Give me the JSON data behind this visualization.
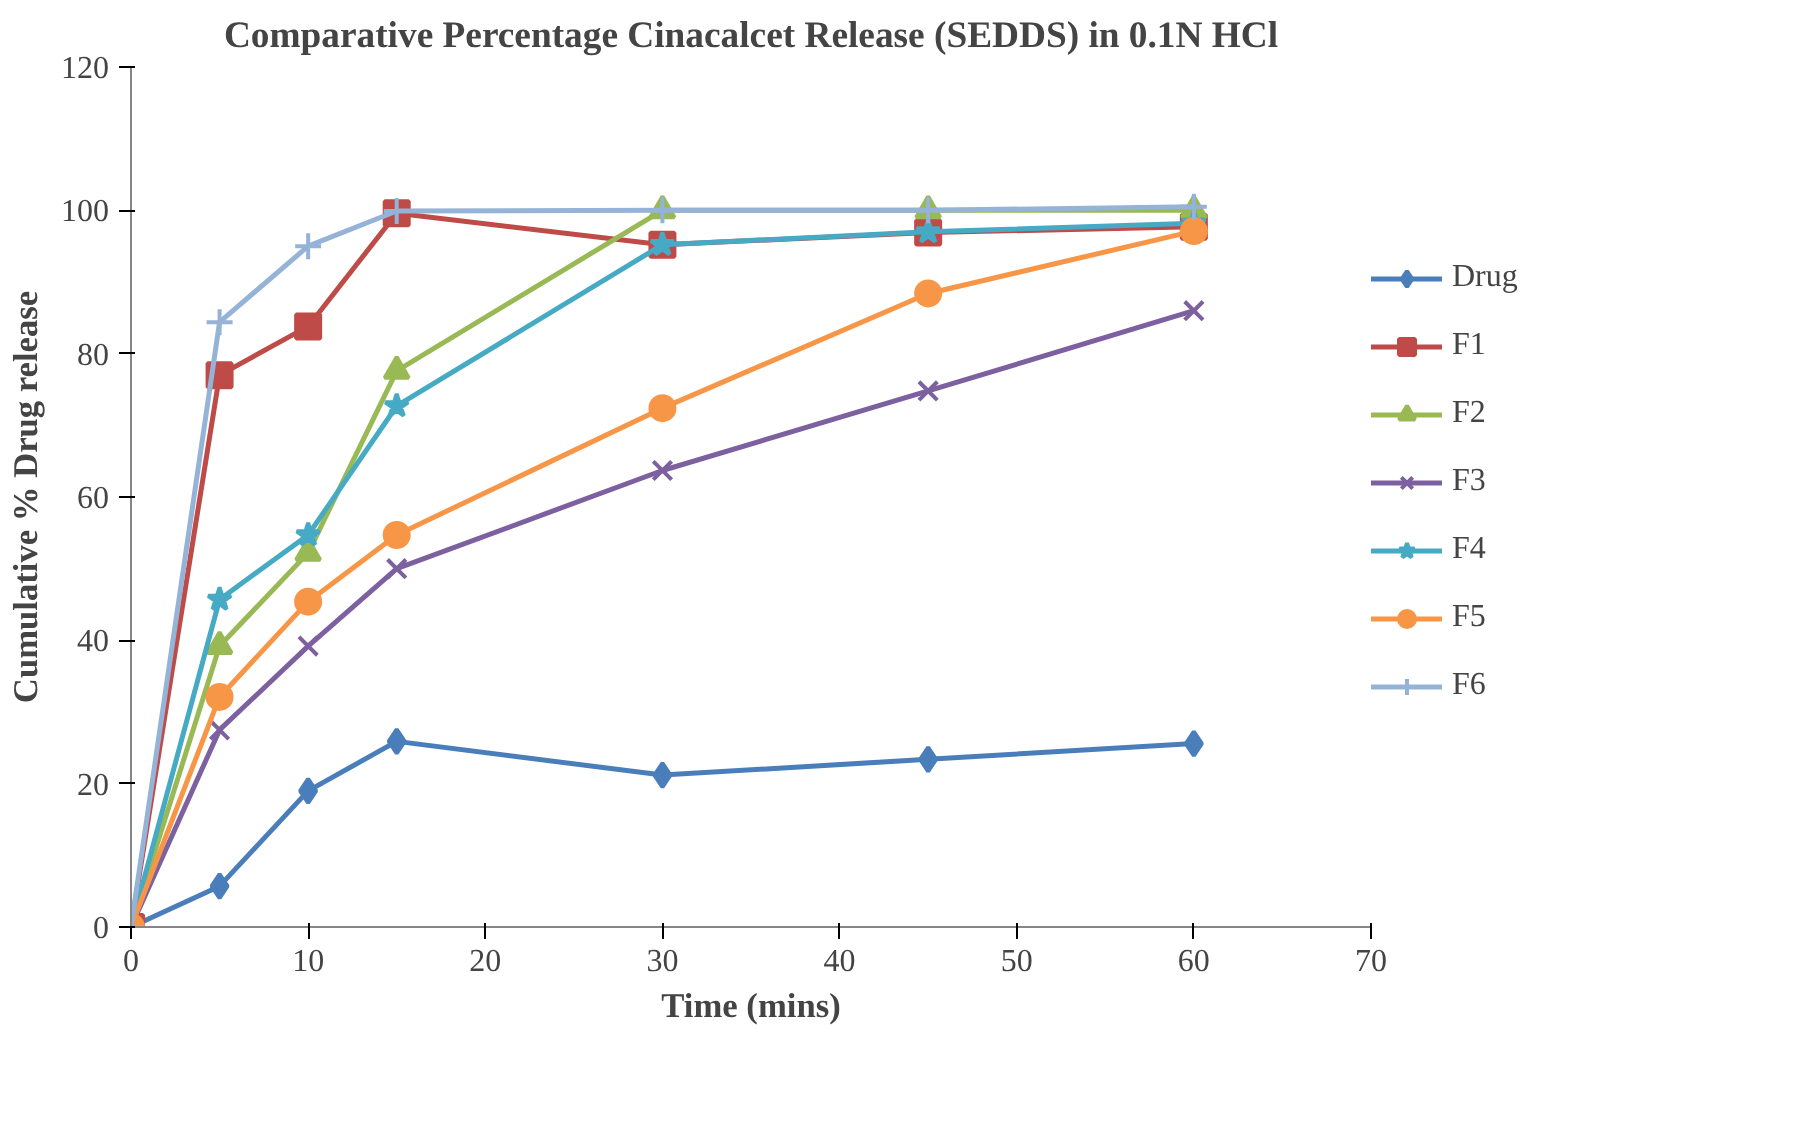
{
  "chart_data": {
    "type": "line",
    "title": "Comparative Percentage Cinacalcet Release (SEDDS) in 0.1N HCl",
    "xlabel": "Time (mins)",
    "ylabel": "Cumulative % Drug release",
    "x": [
      0,
      5,
      10,
      15,
      30,
      45,
      60
    ],
    "xlim": [
      0,
      70
    ],
    "xticks": [
      0,
      10,
      20,
      30,
      40,
      50,
      60,
      70
    ],
    "ylim": [
      0,
      120
    ],
    "yticks": [
      0,
      20,
      40,
      60,
      80,
      100,
      120
    ],
    "grid": false,
    "legend": "right",
    "line_style": "solid",
    "series": [
      {
        "name": "Drug",
        "color": "#4a7ebb",
        "marker": "diamond",
        "values": [
          0,
          5.7,
          19,
          25.9,
          21.2,
          23.4,
          25.6
        ]
      },
      {
        "name": "F1",
        "color": "#be4b48",
        "marker": "square",
        "values": [
          0,
          77,
          83.8,
          99.6,
          95.2,
          96.9,
          97.7
        ]
      },
      {
        "name": "F2",
        "color": "#98b954",
        "marker": "triangle",
        "values": [
          0,
          39.2,
          52.2,
          77.6,
          100,
          100,
          100
        ]
      },
      {
        "name": "F3",
        "color": "#7d60a0",
        "marker": "cross",
        "values": [
          0,
          27.5,
          39.2,
          50,
          63.7,
          74.8,
          86
        ]
      },
      {
        "name": "F4",
        "color": "#46aac5",
        "marker": "star",
        "values": [
          0,
          45.7,
          54.7,
          72.7,
          95.2,
          97,
          98.2
        ]
      },
      {
        "name": "F5",
        "color": "#f79646",
        "marker": "circle",
        "values": [
          0,
          32.1,
          45.4,
          54.7,
          72.4,
          88.4,
          97.1
        ]
      },
      {
        "name": "F6",
        "color": "#95b3d7",
        "marker": "plus",
        "values": [
          0,
          84.4,
          95,
          99.9,
          100,
          100,
          100.5
        ]
      }
    ]
  }
}
